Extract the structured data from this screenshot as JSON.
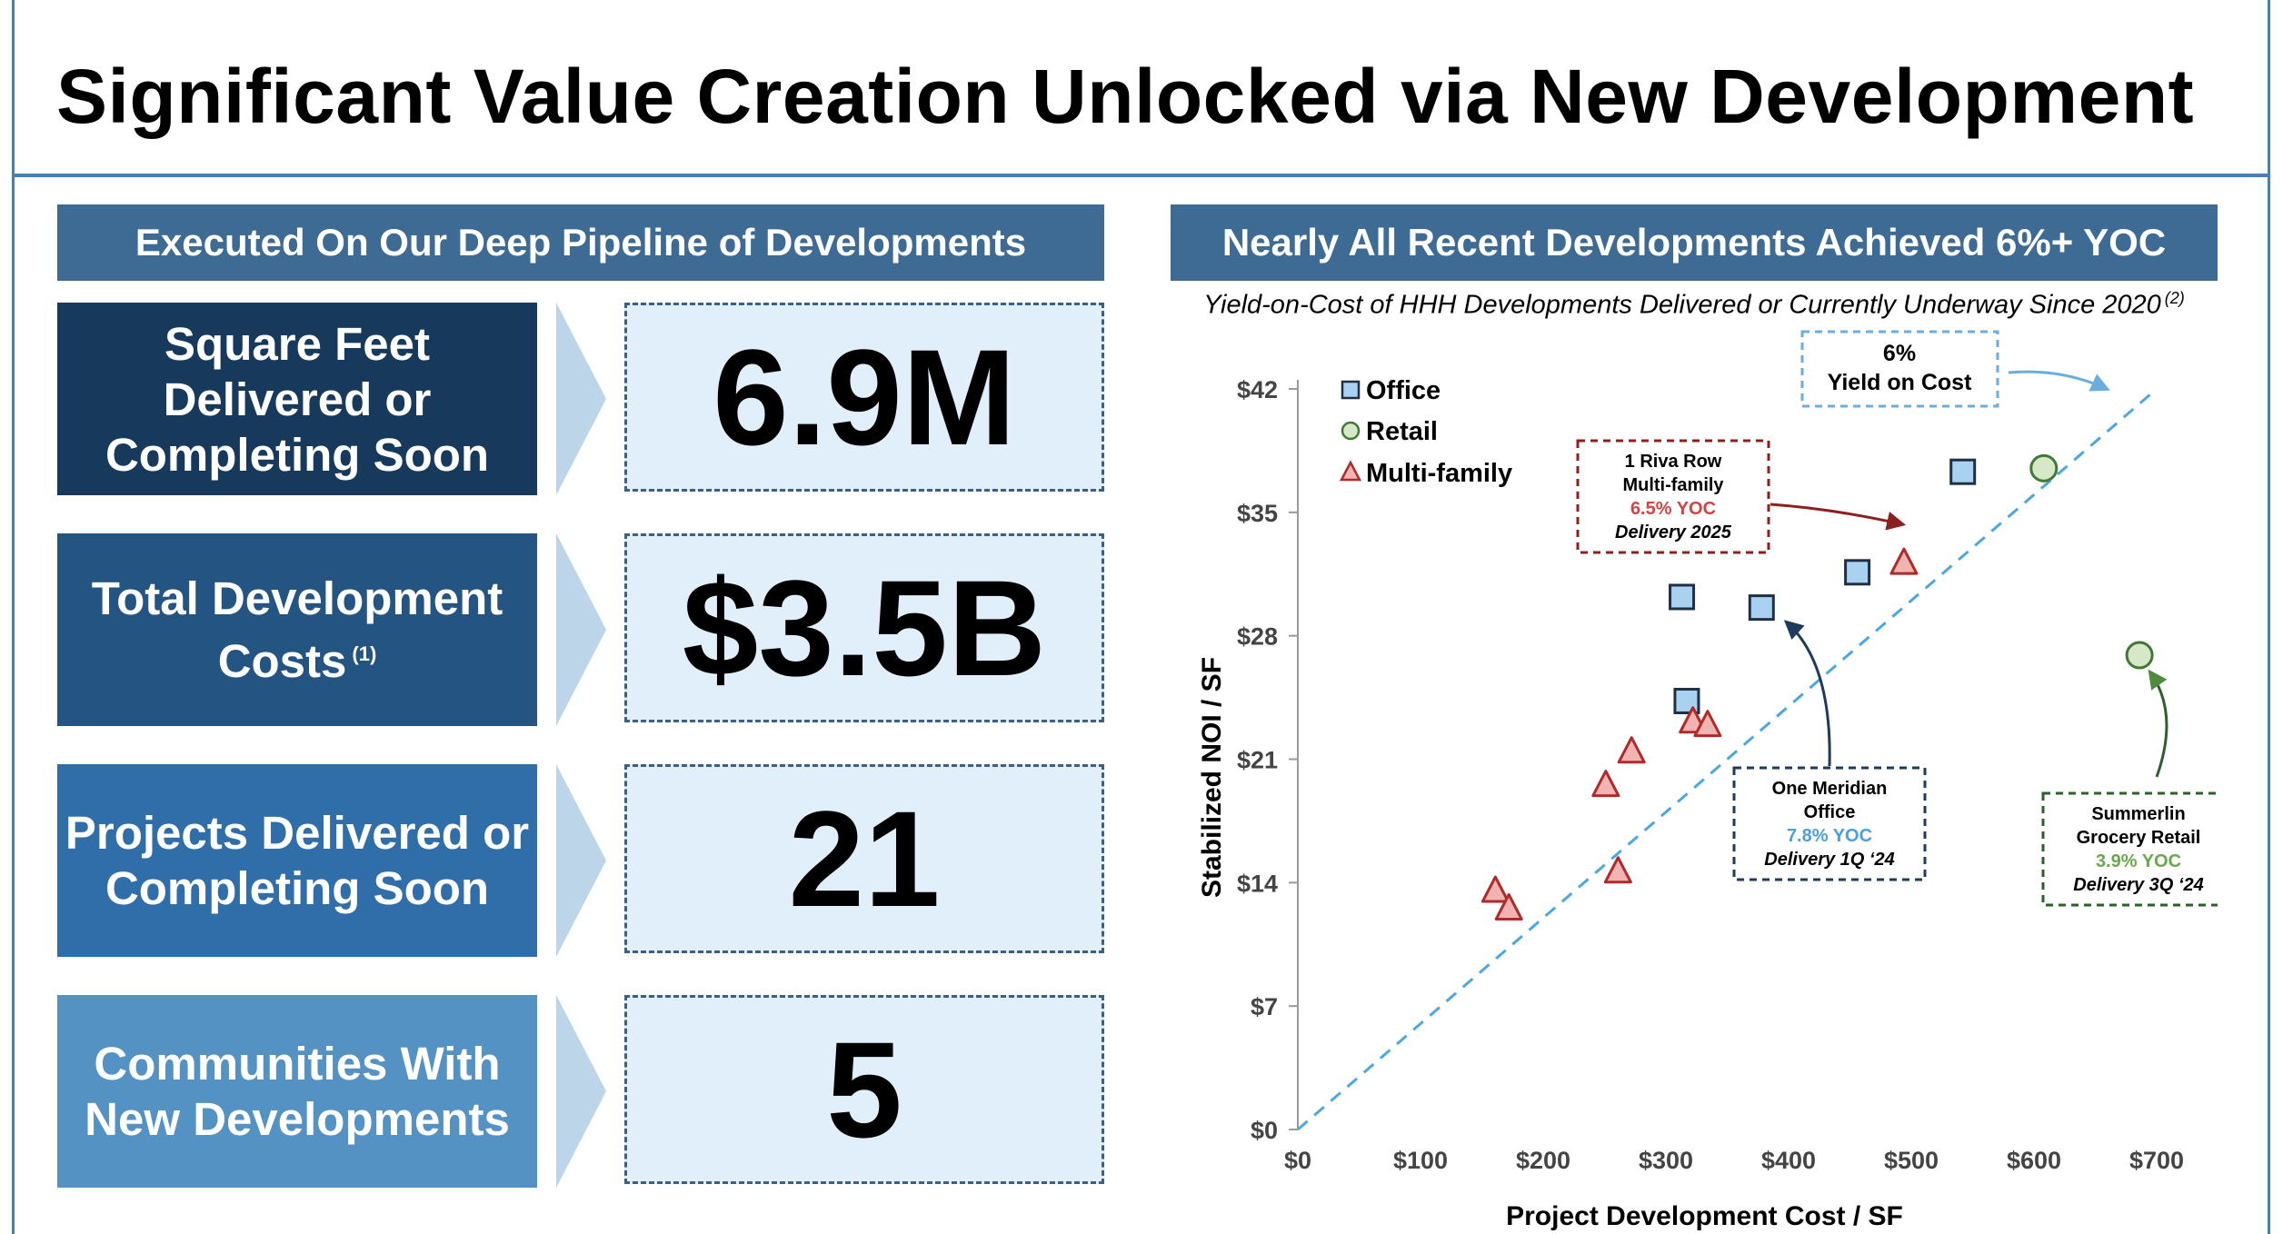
{
  "title": "Significant Value Creation Unlocked via New Development",
  "left_header": "Executed On Our Deep Pipeline of Developments",
  "right_header": "Nearly All Recent Developments Achieved 6%+ YOC",
  "stats": [
    {
      "label": "Square Feet Delivered or Completing Soon",
      "footnote": "",
      "value": "6.9M",
      "color": "#173a5c"
    },
    {
      "label": "Total Development Costs",
      "footnote": "(1)",
      "value": "$3.5B",
      "color": "#245482"
    },
    {
      "label": "Projects Delivered or Completing Soon",
      "footnote": "",
      "value": "21",
      "color": "#2f6ea8"
    },
    {
      "label": "Communities With New Developments",
      "footnote": "",
      "value": "5",
      "color": "#5592c4"
    }
  ],
  "chart_subtitle": "Yield-on-Cost of HHH Developments Delivered or Currently Underway Since 2020",
  "chart_subtitle_note": "(2)",
  "chart_data": {
    "type": "scatter",
    "xlabel": "Project Development Cost / SF",
    "ylabel": "Stabilized NOI / SF",
    "xlim": [
      0,
      700
    ],
    "ylim": [
      0,
      42
    ],
    "x_ticks": [
      "$0",
      "$100",
      "$200",
      "$300",
      "$400",
      "$500",
      "$600",
      "$700"
    ],
    "y_ticks": [
      "$0",
      "$7",
      "$14",
      "$21",
      "$28",
      "$35",
      "$42"
    ],
    "grid": false,
    "legend_position": "top-left",
    "series": [
      {
        "name": "Office",
        "marker": "square",
        "color": "#4a9fde",
        "points": [
          [
            313,
            30.2
          ],
          [
            378,
            29.6
          ],
          [
            317,
            24.3
          ],
          [
            456,
            31.6
          ],
          [
            542,
            37.3
          ]
        ]
      },
      {
        "name": "Retail",
        "marker": "circle",
        "color": "#6aa84f",
        "points": [
          [
            608,
            37.5
          ],
          [
            686,
            26.9
          ]
        ]
      },
      {
        "name": "Multi-family",
        "marker": "triangle",
        "color": "#d04545",
        "points": [
          [
            494,
            32.1
          ],
          [
            322,
            23.1
          ],
          [
            334,
            22.9
          ],
          [
            272,
            21.4
          ],
          [
            251,
            19.5
          ],
          [
            261,
            14.6
          ],
          [
            161,
            13.5
          ],
          [
            172,
            12.5
          ]
        ]
      }
    ],
    "reference_line": {
      "label_line1": "6%",
      "label_line2": "Yield on Cost",
      "slope": 0.06,
      "color": "#4aa8e0"
    },
    "annotations": [
      {
        "line1": "1 Riva Row",
        "line2": "Multi-family",
        "yoc": "6.5% YOC",
        "delivery": "Delivery 2025",
        "color": "#8b2020",
        "yoc_color": "#d04545"
      },
      {
        "line1": "One Meridian",
        "line2": "Office",
        "yoc": "7.8% YOC",
        "delivery": "Delivery 1Q ‘24",
        "color": "#1e3a5c",
        "yoc_color": "#4a9fde"
      },
      {
        "line1": "Summerlin",
        "line2": "Grocery Retail",
        "yoc": "3.9% YOC",
        "delivery": "Delivery 3Q ‘24",
        "color": "#2f5e2f",
        "yoc_color": "#6aa84f"
      }
    ]
  }
}
